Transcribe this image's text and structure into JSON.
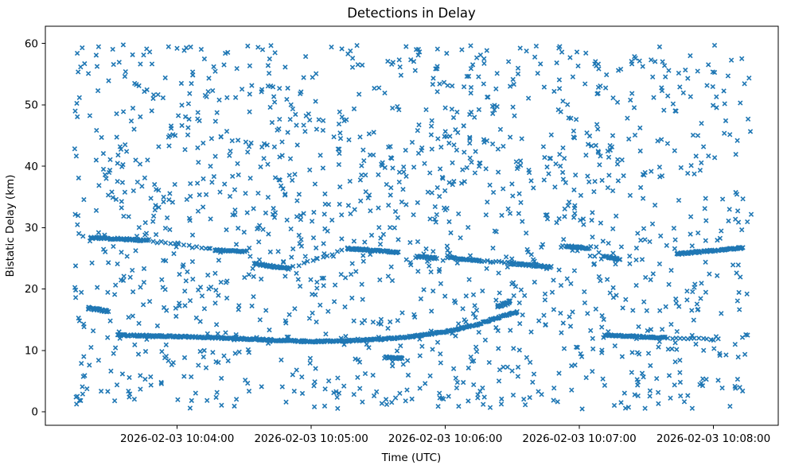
{
  "chart_data": {
    "type": "scatter",
    "title": "Detections in Delay",
    "xlabel": "Time (UTC)",
    "ylabel": "Bistatic Delay (km)",
    "marker": "x",
    "marker_color": "#1f77b4",
    "legend": "none",
    "grid": false,
    "x_ticks": [
      {
        "t": 60,
        "label": "2026-02-03 10:04:00"
      },
      {
        "t": 120,
        "label": "2026-02-03 10:05:00"
      },
      {
        "t": 180,
        "label": "2026-02-03 10:06:00"
      },
      {
        "t": 240,
        "label": "2026-02-03 10:07:00"
      },
      {
        "t": 300,
        "label": "2026-02-03 10:08:00"
      }
    ],
    "y_ticks": [
      {
        "v": 0,
        "label": "0"
      },
      {
        "v": 10,
        "label": "10"
      },
      {
        "v": 20,
        "label": "20"
      },
      {
        "v": 30,
        "label": "30"
      },
      {
        "v": 40,
        "label": "40"
      },
      {
        "v": 50,
        "label": "50"
      },
      {
        "v": 60,
        "label": "60"
      }
    ],
    "time_axis_note": "t values are seconds after 2026-02-03 10:03:00 UTC",
    "xlim_seconds": [
      1,
      329
    ],
    "ylim": [
      -2.2,
      62.8
    ],
    "clutter": {
      "description": "uniform random false-alarm detections",
      "count": 1500,
      "t_range": [
        14,
        317
      ],
      "v_range": [
        0.4,
        59.8
      ],
      "seed": 7
    },
    "tracks": [
      {
        "name": "low-track-main-rising",
        "density": 2.3,
        "jitter": 0.13,
        "points": [
          [
            33,
            12.5
          ],
          [
            70,
            12.15
          ],
          [
            96,
            11.8
          ],
          [
            109,
            11.55
          ],
          [
            122,
            11.45
          ],
          [
            136,
            11.55
          ],
          [
            152,
            11.85
          ],
          [
            166,
            12.3
          ],
          [
            181,
            13.1
          ],
          [
            194,
            14.2
          ],
          [
            203,
            15.3
          ],
          [
            212,
            16.2
          ]
        ]
      },
      {
        "name": "low-track-knot",
        "density": 4.0,
        "jitter": 0.3,
        "points": [
          [
            203,
            17.2
          ],
          [
            209,
            17.9
          ]
        ]
      },
      {
        "name": "low-track-right-flat",
        "density": 2.5,
        "jitter": 0.12,
        "points": [
          [
            251,
            12.5
          ],
          [
            266,
            12.25
          ],
          [
            278,
            12.05
          ]
        ]
      },
      {
        "name": "low-track-right-tail",
        "density": 0.6,
        "jitter": 0.15,
        "points": [
          [
            278,
            12.05
          ],
          [
            302,
            11.8
          ]
        ]
      },
      {
        "name": "seg-16km-left",
        "density": 3.0,
        "jitter": 0.2,
        "points": [
          [
            20,
            16.9
          ],
          [
            29,
            16.4
          ]
        ]
      },
      {
        "name": "upper-seg-28km-left",
        "density": 2.5,
        "jitter": 0.15,
        "points": [
          [
            21,
            28.4
          ],
          [
            47,
            27.9
          ]
        ]
      },
      {
        "name": "upper-connector-1",
        "density": 0.5,
        "jitter": 0.2,
        "points": [
          [
            47,
            27.9
          ],
          [
            77,
            26.4
          ]
        ]
      },
      {
        "name": "upper-seg-26km",
        "density": 2.5,
        "jitter": 0.12,
        "points": [
          [
            77,
            26.35
          ],
          [
            91,
            26.1
          ]
        ]
      },
      {
        "name": "upper-seg-23km",
        "density": 2.5,
        "jitter": 0.15,
        "points": [
          [
            94,
            24.15
          ],
          [
            110,
            23.3
          ]
        ]
      },
      {
        "name": "upper-connector-2",
        "density": 0.45,
        "jitter": 0.2,
        "points": [
          [
            110,
            23.3
          ],
          [
            136,
            26.5
          ]
        ]
      },
      {
        "name": "upper-seg-26km-mid",
        "density": 2.5,
        "jitter": 0.13,
        "points": [
          [
            136,
            26.6
          ],
          [
            159,
            26.0
          ]
        ]
      },
      {
        "name": "upper-seg-25km",
        "density": 2.8,
        "jitter": 0.12,
        "points": [
          [
            167,
            25.35
          ],
          [
            176,
            25.0
          ]
        ]
      },
      {
        "name": "upper-seg-24km",
        "density": 2.5,
        "jitter": 0.12,
        "points": [
          [
            182,
            25.1
          ],
          [
            195,
            24.6
          ]
        ]
      },
      {
        "name": "upper-connector-3",
        "density": 0.8,
        "jitter": 0.15,
        "points": [
          [
            195,
            24.6
          ],
          [
            208,
            24.3
          ]
        ]
      },
      {
        "name": "upper-seg-23km-right",
        "density": 2.5,
        "jitter": 0.15,
        "points": [
          [
            208,
            24.2
          ],
          [
            227,
            23.6
          ]
        ]
      },
      {
        "name": "upper-seg-27km-right",
        "density": 2.8,
        "jitter": 0.15,
        "points": [
          [
            234,
            27.0
          ],
          [
            244,
            26.6
          ]
        ]
      },
      {
        "name": "upper-seg-25km-right",
        "density": 2.8,
        "jitter": 0.12,
        "points": [
          [
            250,
            25.35
          ],
          [
            258,
            24.9
          ]
        ]
      },
      {
        "name": "upper-seg-26km-far",
        "density": 2.6,
        "jitter": 0.15,
        "points": [
          [
            283,
            25.7
          ],
          [
            313,
            26.7
          ]
        ]
      },
      {
        "name": "seg-9km-mid",
        "density": 3.0,
        "jitter": 0.12,
        "points": [
          [
            153,
            8.9
          ],
          [
            161,
            8.7
          ]
        ]
      }
    ]
  }
}
